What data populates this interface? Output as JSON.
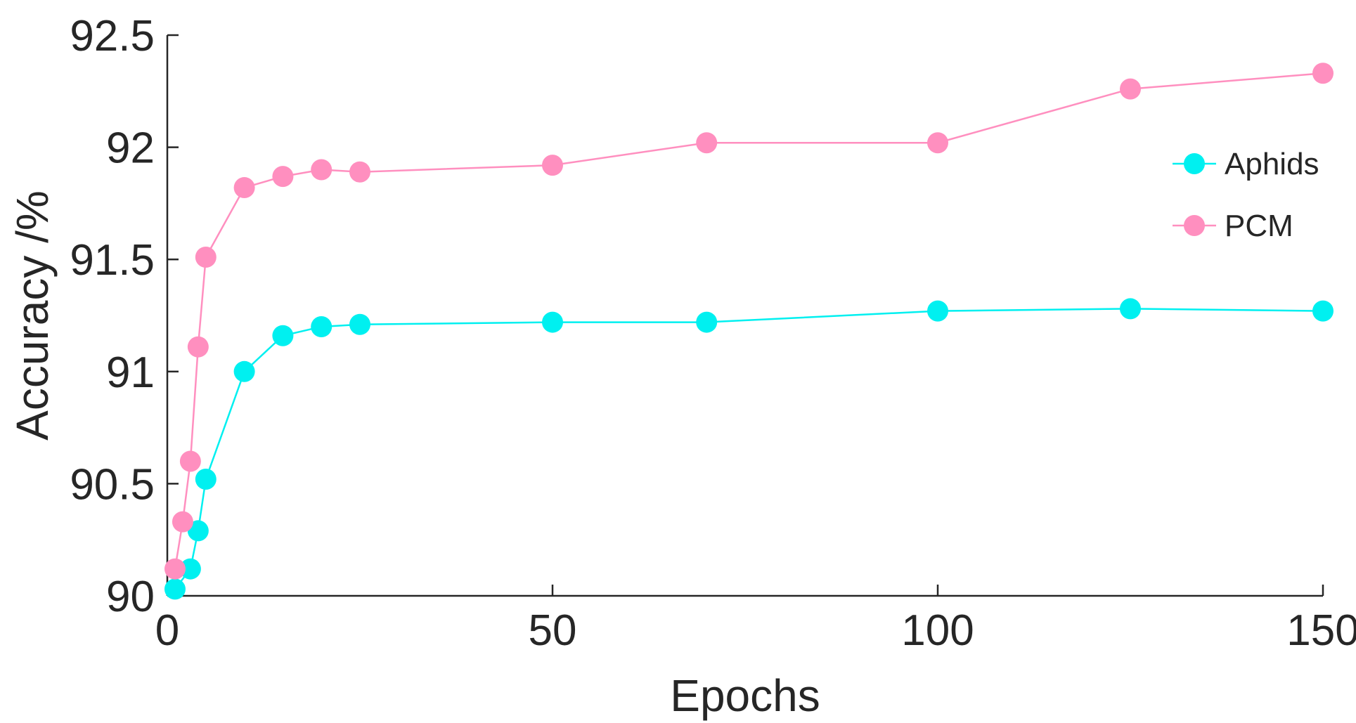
{
  "chart_data": {
    "type": "line",
    "title": "",
    "xlabel": "Epochs",
    "ylabel": "Accuracy /%",
    "xlim": [
      0,
      150
    ],
    "ylim": [
      90,
      92.5
    ],
    "xticks": [
      0,
      50,
      100,
      150
    ],
    "xtick_labels": [
      "0",
      "50",
      "100",
      "150"
    ],
    "yticks": [
      90,
      90.5,
      91,
      91.5,
      92,
      92.5
    ],
    "ytick_labels": [
      "90",
      "90.5",
      "91",
      "91.5",
      "92",
      "92.5"
    ],
    "grid": false,
    "legend_position": "right",
    "series": [
      {
        "name": "Aphids",
        "color": "#00F0F0",
        "x": [
          1,
          3,
          4,
          5,
          10,
          15,
          20,
          25,
          50,
          70,
          100,
          125,
          150
        ],
        "y": [
          90.03,
          90.12,
          90.29,
          90.52,
          91.0,
          91.16,
          91.2,
          91.21,
          91.22,
          91.22,
          91.27,
          91.28,
          91.27
        ]
      },
      {
        "name": "PCM",
        "color": "#FF8FBF",
        "x": [
          1,
          2,
          3,
          4,
          5,
          10,
          15,
          20,
          25,
          50,
          70,
          100,
          125,
          150
        ],
        "y": [
          90.12,
          90.33,
          90.6,
          91.11,
          91.51,
          91.82,
          91.87,
          91.9,
          91.89,
          91.92,
          92.02,
          92.02,
          92.26,
          92.33
        ]
      }
    ]
  }
}
